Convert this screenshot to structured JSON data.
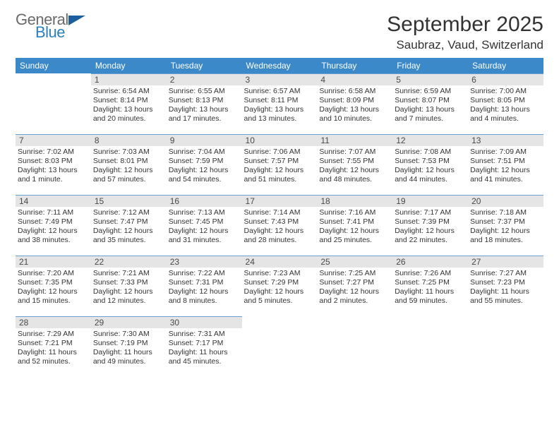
{
  "logo": {
    "line1": "General",
    "line2": "Blue"
  },
  "title": "September 2025",
  "location": "Saubraz, Vaud, Switzerland",
  "colors": {
    "header_bg": "#3b89c9",
    "header_text": "#ffffff",
    "daynum_bg": "#e5e5e5",
    "daynum_border": "#6aa0cf",
    "text": "#333333",
    "logo_gray": "#6a6a6a",
    "logo_blue": "#2a7fbf"
  },
  "weekdays": [
    "Sunday",
    "Monday",
    "Tuesday",
    "Wednesday",
    "Thursday",
    "Friday",
    "Saturday"
  ],
  "weeks": [
    [
      null,
      {
        "n": "1",
        "sr": "6:54 AM",
        "ss": "8:14 PM",
        "dl": "13 hours and 20 minutes."
      },
      {
        "n": "2",
        "sr": "6:55 AM",
        "ss": "8:13 PM",
        "dl": "13 hours and 17 minutes."
      },
      {
        "n": "3",
        "sr": "6:57 AM",
        "ss": "8:11 PM",
        "dl": "13 hours and 13 minutes."
      },
      {
        "n": "4",
        "sr": "6:58 AM",
        "ss": "8:09 PM",
        "dl": "13 hours and 10 minutes."
      },
      {
        "n": "5",
        "sr": "6:59 AM",
        "ss": "8:07 PM",
        "dl": "13 hours and 7 minutes."
      },
      {
        "n": "6",
        "sr": "7:00 AM",
        "ss": "8:05 PM",
        "dl": "13 hours and 4 minutes."
      }
    ],
    [
      {
        "n": "7",
        "sr": "7:02 AM",
        "ss": "8:03 PM",
        "dl": "13 hours and 1 minute."
      },
      {
        "n": "8",
        "sr": "7:03 AM",
        "ss": "8:01 PM",
        "dl": "12 hours and 57 minutes."
      },
      {
        "n": "9",
        "sr": "7:04 AM",
        "ss": "7:59 PM",
        "dl": "12 hours and 54 minutes."
      },
      {
        "n": "10",
        "sr": "7:06 AM",
        "ss": "7:57 PM",
        "dl": "12 hours and 51 minutes."
      },
      {
        "n": "11",
        "sr": "7:07 AM",
        "ss": "7:55 PM",
        "dl": "12 hours and 48 minutes."
      },
      {
        "n": "12",
        "sr": "7:08 AM",
        "ss": "7:53 PM",
        "dl": "12 hours and 44 minutes."
      },
      {
        "n": "13",
        "sr": "7:09 AM",
        "ss": "7:51 PM",
        "dl": "12 hours and 41 minutes."
      }
    ],
    [
      {
        "n": "14",
        "sr": "7:11 AM",
        "ss": "7:49 PM",
        "dl": "12 hours and 38 minutes."
      },
      {
        "n": "15",
        "sr": "7:12 AM",
        "ss": "7:47 PM",
        "dl": "12 hours and 35 minutes."
      },
      {
        "n": "16",
        "sr": "7:13 AM",
        "ss": "7:45 PM",
        "dl": "12 hours and 31 minutes."
      },
      {
        "n": "17",
        "sr": "7:14 AM",
        "ss": "7:43 PM",
        "dl": "12 hours and 28 minutes."
      },
      {
        "n": "18",
        "sr": "7:16 AM",
        "ss": "7:41 PM",
        "dl": "12 hours and 25 minutes."
      },
      {
        "n": "19",
        "sr": "7:17 AM",
        "ss": "7:39 PM",
        "dl": "12 hours and 22 minutes."
      },
      {
        "n": "20",
        "sr": "7:18 AM",
        "ss": "7:37 PM",
        "dl": "12 hours and 18 minutes."
      }
    ],
    [
      {
        "n": "21",
        "sr": "7:20 AM",
        "ss": "7:35 PM",
        "dl": "12 hours and 15 minutes."
      },
      {
        "n": "22",
        "sr": "7:21 AM",
        "ss": "7:33 PM",
        "dl": "12 hours and 12 minutes."
      },
      {
        "n": "23",
        "sr": "7:22 AM",
        "ss": "7:31 PM",
        "dl": "12 hours and 8 minutes."
      },
      {
        "n": "24",
        "sr": "7:23 AM",
        "ss": "7:29 PM",
        "dl": "12 hours and 5 minutes."
      },
      {
        "n": "25",
        "sr": "7:25 AM",
        "ss": "7:27 PM",
        "dl": "12 hours and 2 minutes."
      },
      {
        "n": "26",
        "sr": "7:26 AM",
        "ss": "7:25 PM",
        "dl": "11 hours and 59 minutes."
      },
      {
        "n": "27",
        "sr": "7:27 AM",
        "ss": "7:23 PM",
        "dl": "11 hours and 55 minutes."
      }
    ],
    [
      {
        "n": "28",
        "sr": "7:29 AM",
        "ss": "7:21 PM",
        "dl": "11 hours and 52 minutes."
      },
      {
        "n": "29",
        "sr": "7:30 AM",
        "ss": "7:19 PM",
        "dl": "11 hours and 49 minutes."
      },
      {
        "n": "30",
        "sr": "7:31 AM",
        "ss": "7:17 PM",
        "dl": "11 hours and 45 minutes."
      },
      null,
      null,
      null,
      null
    ]
  ],
  "labels": {
    "sunrise": "Sunrise:",
    "sunset": "Sunset:",
    "daylight": "Daylight:"
  }
}
